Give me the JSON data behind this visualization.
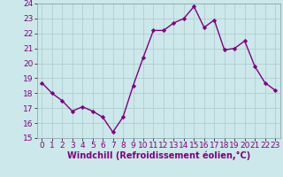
{
  "x": [
    0,
    1,
    2,
    3,
    4,
    5,
    6,
    7,
    8,
    9,
    10,
    11,
    12,
    13,
    14,
    15,
    16,
    17,
    18,
    19,
    20,
    21,
    22,
    23
  ],
  "y": [
    18.7,
    18.0,
    17.5,
    16.8,
    17.1,
    16.8,
    16.4,
    15.4,
    16.4,
    18.5,
    20.4,
    22.2,
    22.2,
    22.7,
    23.0,
    23.8,
    22.4,
    22.9,
    20.9,
    21.0,
    21.5,
    19.8,
    18.7,
    18.2
  ],
  "line_color": "#800080",
  "marker": "D",
  "marker_size": 2.2,
  "bg_color": "#cce8ea",
  "grid_color": "#b0cdd0",
  "xlabel": "Windchill (Refroidissement éolien,°C)",
  "xlim": [
    -0.5,
    23.5
  ],
  "ylim": [
    15,
    24
  ],
  "xticks": [
    0,
    1,
    2,
    3,
    4,
    5,
    6,
    7,
    8,
    9,
    10,
    11,
    12,
    13,
    14,
    15,
    16,
    17,
    18,
    19,
    20,
    21,
    22,
    23
  ],
  "yticks": [
    15,
    16,
    17,
    18,
    19,
    20,
    21,
    22,
    23,
    24
  ],
  "xlabel_fontsize": 7.0,
  "tick_fontsize": 6.5,
  "line_width": 1.0
}
